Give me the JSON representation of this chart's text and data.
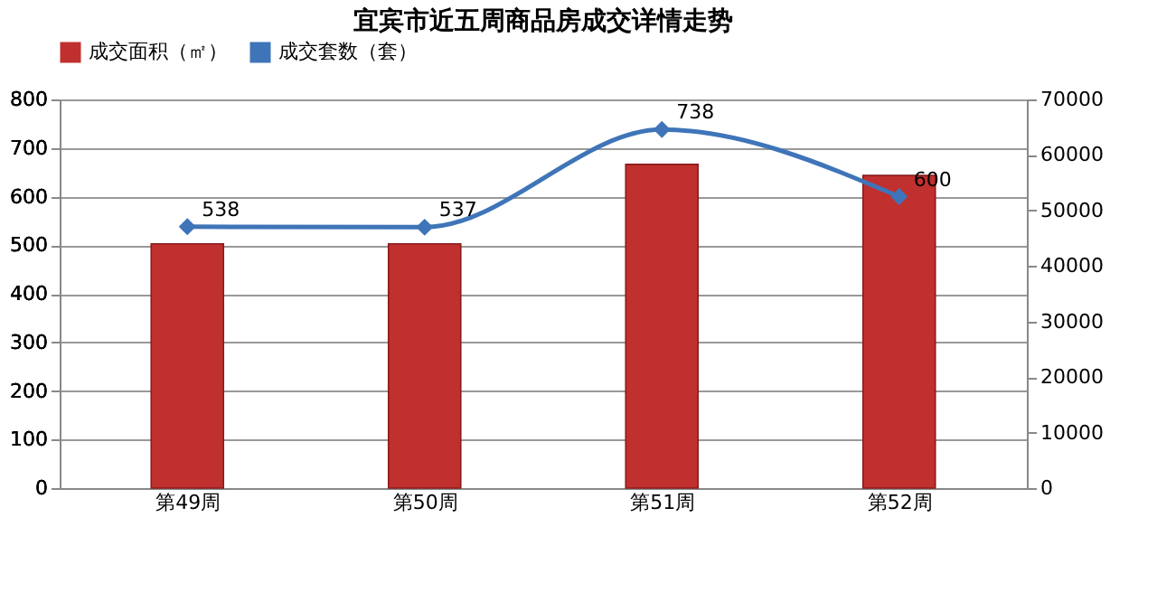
{
  "chart_data": {
    "type": "bar",
    "title": "宜宾市近五周商品房成交详情走势",
    "categories": [
      "第49周",
      "第50周",
      "第51周",
      "第52周"
    ],
    "series": [
      {
        "name": "成交面积（㎡）",
        "axis": "y2",
        "color": "#c0302e",
        "values": [
          44000,
          44000,
          58300,
          56300
        ]
      },
      {
        "name": "成交套数（套）",
        "type": "line",
        "axis": "y",
        "color": "#3f75b8",
        "values": [
          538,
          537,
          738,
          600
        ],
        "value_labels": [
          "538",
          "537",
          "738",
          "600"
        ]
      }
    ],
    "ylim": [
      0,
      800
    ],
    "yticks": [
      0,
      100,
      200,
      300,
      400,
      500,
      600,
      700,
      800
    ],
    "y2lim": [
      0,
      70000
    ],
    "y2ticks": [
      0,
      10000,
      20000,
      30000,
      40000,
      50000,
      60000,
      70000
    ],
    "grid": "y",
    "legend": "top",
    "marker": "diamond"
  }
}
